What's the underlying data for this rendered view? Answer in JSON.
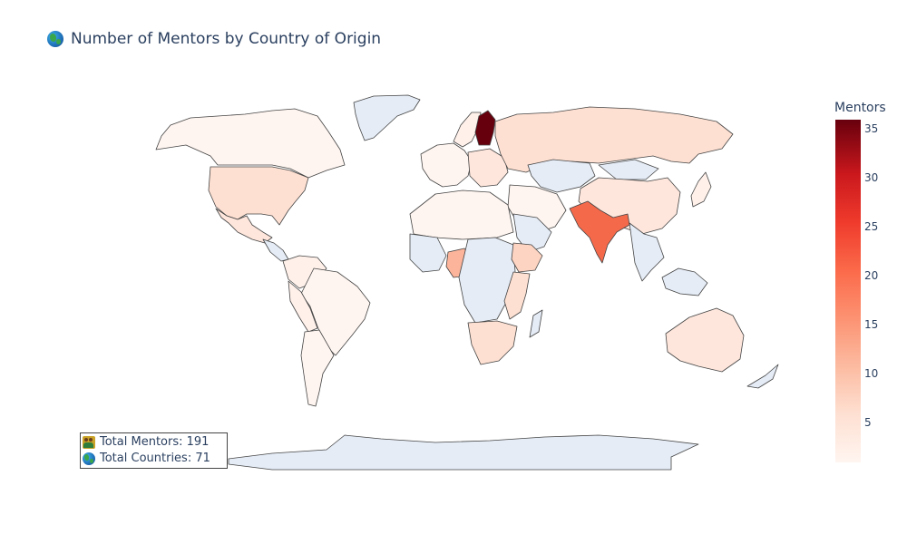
{
  "title": "Number of Mentors by Country of Origin",
  "colorbar": {
    "title": "Mentors",
    "ticks": [
      "5",
      "10",
      "15",
      "20",
      "25",
      "30",
      "35"
    ],
    "range": [
      1,
      36
    ],
    "colorscale": [
      "#fff5f0",
      "#fee0d2",
      "#fcbba1",
      "#fc9272",
      "#fb6a4a",
      "#ef3b2c",
      "#cb181d",
      "#67000d"
    ]
  },
  "stats": {
    "total_mentors": "Total Mentors: 191",
    "total_countries": "Total Countries: 71"
  },
  "map_data": {
    "no_data_color": "#e5ecf6",
    "countries": [
      {
        "name": "Canada",
        "mentors": 2
      },
      {
        "name": "United States",
        "mentors": 6
      },
      {
        "name": "Mexico",
        "mentors": 4
      },
      {
        "name": "Greenland",
        "mentors": null
      },
      {
        "name": "Brazil",
        "mentors": 2
      },
      {
        "name": "Argentina",
        "mentors": 1
      },
      {
        "name": "Colombia",
        "mentors": 2
      },
      {
        "name": "Peru",
        "mentors": 2
      },
      {
        "name": "Finland",
        "mentors": 36
      },
      {
        "name": "Russia",
        "mentors": 5
      },
      {
        "name": "Kazakhstan",
        "mentors": null
      },
      {
        "name": "China",
        "mentors": 3
      },
      {
        "name": "India",
        "mentors": 19
      },
      {
        "name": "Nigeria",
        "mentors": 9
      },
      {
        "name": "Ethiopia",
        "mentors": 5
      },
      {
        "name": "Kenya",
        "mentors": 3
      },
      {
        "name": "South Africa",
        "mentors": 4
      },
      {
        "name": "Australia",
        "mentors": 3
      },
      {
        "name": "Antarctica",
        "mentors": null
      }
    ]
  }
}
